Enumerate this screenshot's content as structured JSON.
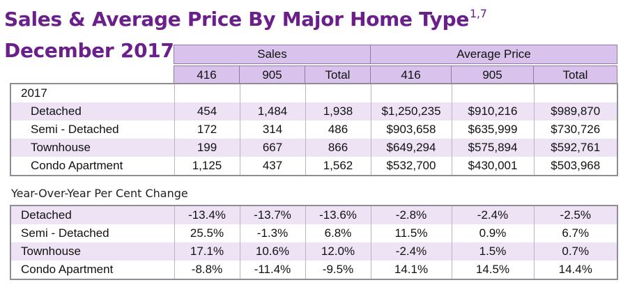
{
  "title": {
    "line1": "Sales & Average Price By Major Home Type",
    "superscript": "1,7",
    "line2": "December 2017"
  },
  "header": {
    "groups": [
      "Sales",
      "Average Price"
    ],
    "columns": [
      "416",
      "905",
      "Total",
      "416",
      "905",
      "Total"
    ]
  },
  "main": {
    "year": "2017",
    "rows": [
      {
        "label": "Detached",
        "values": [
          "454",
          "1,484",
          "1,938",
          "$1,250,235",
          "$910,216",
          "$989,870"
        ]
      },
      {
        "label": "Semi - Detached",
        "values": [
          "172",
          "314",
          "486",
          "$903,658",
          "$635,999",
          "$730,726"
        ]
      },
      {
        "label": "Townhouse",
        "values": [
          "199",
          "667",
          "866",
          "$649,294",
          "$575,894",
          "$592,761"
        ]
      },
      {
        "label": "Condo Apartment",
        "values": [
          "1,125",
          "437",
          "1,562",
          "$532,700",
          "$430,001",
          "$503,968"
        ]
      }
    ]
  },
  "yoy": {
    "caption": "Year-Over-Year Per Cent Change",
    "rows": [
      {
        "label": "Detached",
        "values": [
          "-13.4%",
          "-13.7%",
          "-13.6%",
          "-2.8%",
          "-2.4%",
          "-2.5%"
        ]
      },
      {
        "label": "Semi - Detached",
        "values": [
          "25.5%",
          "-1.3%",
          "6.8%",
          "11.5%",
          "0.9%",
          "6.7%"
        ]
      },
      {
        "label": "Townhouse",
        "values": [
          "17.1%",
          "10.6%",
          "12.0%",
          "-2.4%",
          "1.5%",
          "0.7%"
        ]
      },
      {
        "label": "Condo Apartment",
        "values": [
          "-8.8%",
          "-11.4%",
          "-9.5%",
          "14.1%",
          "14.5%",
          "14.4%"
        ]
      }
    ]
  }
}
